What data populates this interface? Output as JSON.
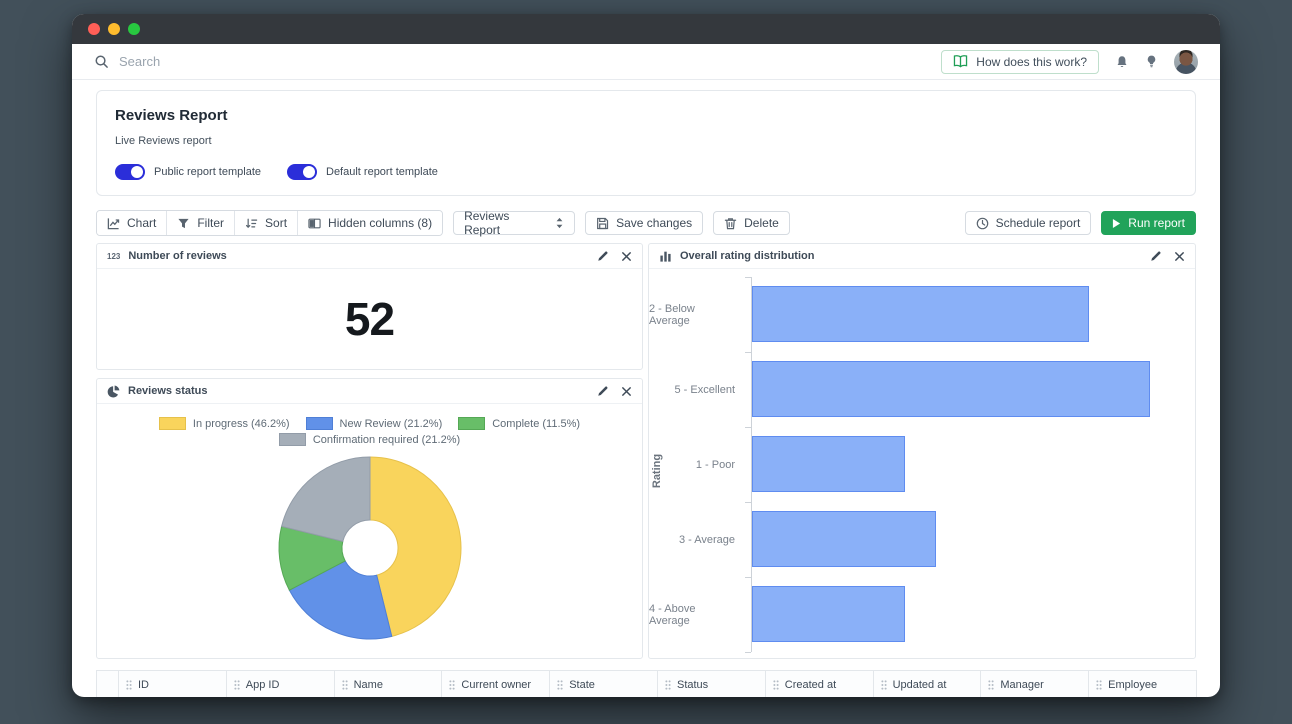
{
  "navbar": {
    "search_placeholder": "Search",
    "help_button_label": "How does this work?"
  },
  "report_header": {
    "title": "Reviews Report",
    "subtitle": "Live Reviews report",
    "toggles": [
      {
        "label": "Public report template",
        "on": true
      },
      {
        "label": "Default report template",
        "on": true
      }
    ],
    "toggle_color": "#2b2ed9"
  },
  "toolbar": {
    "group": [
      {
        "label": "Chart",
        "icon": "chart-line-icon"
      },
      {
        "label": "Filter",
        "icon": "filter-icon"
      },
      {
        "label": "Sort",
        "icon": "sort-icon"
      },
      {
        "label": "Hidden columns (8)",
        "icon": "columns-icon"
      }
    ],
    "report_select_value": "Reviews Report",
    "save_label": "Save changes",
    "delete_label": "Delete",
    "schedule_label": "Schedule report",
    "run_label": "Run report",
    "run_color": "#21a35a"
  },
  "widgets": {
    "number_of_reviews": {
      "title": "Number of reviews",
      "value": "52"
    },
    "reviews_status": {
      "title": "Reviews status"
    },
    "rating_distribution": {
      "title": "Overall rating distribution"
    }
  },
  "chart_data": [
    {
      "type": "pie",
      "title": "Reviews status",
      "donut": true,
      "legend_position": "top",
      "slices": [
        {
          "label": "In progress",
          "pct": 46.2,
          "color": "#f9d45c",
          "stroke": "#e6c14b"
        },
        {
          "label": "New Review",
          "pct": 21.2,
          "color": "#6191e8",
          "stroke": "#4f7fd6"
        },
        {
          "label": "Complete",
          "pct": 11.5,
          "color": "#68be68",
          "stroke": "#55a855"
        },
        {
          "label": "Confirmation required",
          "pct": 21.2,
          "color": "#a5aeb8",
          "stroke": "#929ca8"
        }
      ]
    },
    {
      "type": "bar",
      "title": "Overall rating distribution",
      "orientation": "horizontal",
      "ylabel": "Rating",
      "categories": [
        "2 - Below Average",
        "5 - Excellent",
        "1 - Poor",
        "3 - Average",
        "4 - Above Average"
      ],
      "values": [
        11,
        13,
        5,
        6,
        5
      ],
      "xlim": [
        0,
        13
      ],
      "bar_color": "#8ab0f8",
      "bar_border": "#5f8cf0",
      "grid": false,
      "x_axis_labels_visible": false
    }
  ],
  "table": {
    "columns": [
      "ID",
      "App ID",
      "Name",
      "Current owner",
      "State",
      "Status",
      "Created at",
      "Updated at",
      "Manager",
      "Employee"
    ]
  }
}
